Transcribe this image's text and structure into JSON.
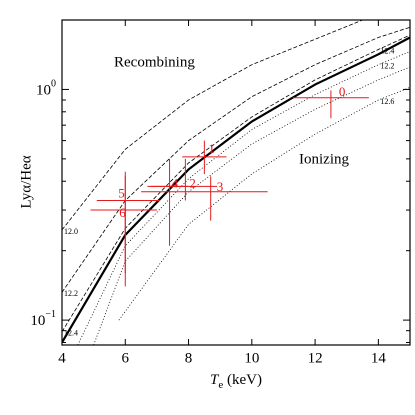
{
  "chart_data": {
    "type": "scatter",
    "xlabel": {
      "main": "T",
      "sub": "e",
      "rest": " (keV)"
    },
    "ylabel": "Lyα/Heα",
    "xlim": [
      4,
      15
    ],
    "ylim": [
      0.078,
      2.0
    ],
    "log_y": true,
    "xticks": [
      4,
      6,
      8,
      10,
      12,
      14
    ],
    "yticks": [
      {
        "value": 0.1,
        "label": "10",
        "exponent": "−1"
      },
      {
        "value": 1,
        "label": "10",
        "exponent": "0"
      }
    ],
    "yminor": [
      0.08,
      0.09,
      0.2,
      0.3,
      0.4,
      0.5,
      0.6,
      0.7,
      0.8,
      0.9,
      2
    ],
    "annotations": [
      "Recombining",
      "Ionizing"
    ],
    "right_labels": [
      "12.4",
      "12.2",
      "12.6"
    ],
    "curves": [
      {
        "name": "12.0",
        "style": "dashed",
        "x": [
          4,
          6,
          8,
          10,
          12,
          13.5
        ],
        "values": [
          0.246,
          0.55,
          0.9,
          1.28,
          1.65,
          2.0
        ]
      },
      {
        "name": "12.2",
        "style": "dashed",
        "x": [
          4,
          6,
          8,
          10,
          12,
          14,
          15
        ],
        "values": [
          0.132,
          0.33,
          0.6,
          0.93,
          1.28,
          1.68,
          1.86
        ]
      },
      {
        "name": "12.4",
        "style": "dashed",
        "x": [
          4,
          6,
          8,
          10,
          12,
          14,
          15
        ],
        "values": [
          0.089,
          0.25,
          0.48,
          0.76,
          1.1,
          1.49,
          1.72
        ]
      },
      {
        "style": "solid",
        "x": [
          4,
          6,
          8,
          10,
          12,
          14,
          15
        ],
        "values": [
          0.08,
          0.234,
          0.45,
          0.726,
          1.05,
          1.42,
          1.68
        ]
      },
      {
        "style": "dotted",
        "x": [
          4.5,
          6,
          8,
          10,
          12,
          14,
          15
        ],
        "values": [
          0.078,
          0.21,
          0.41,
          0.67,
          0.95,
          1.28,
          1.46
        ]
      },
      {
        "style": "dotted",
        "x": [
          5,
          6,
          8,
          10,
          12,
          14,
          15
        ],
        "values": [
          0.078,
          0.18,
          0.36,
          0.58,
          0.82,
          1.1,
          1.25
        ]
      },
      {
        "style": "dotted",
        "x": [
          5.8,
          8,
          10,
          12,
          14,
          15
        ],
        "values": [
          0.1,
          0.26,
          0.43,
          0.64,
          0.9,
          1.02
        ]
      }
    ],
    "points": {
      "color": "#e41a1c",
      "labels": [
        "0",
        "1",
        "2",
        "3",
        "4",
        "5",
        "6"
      ],
      "x": [
        12.5,
        8.5,
        7.9,
        8.7,
        7.4,
        6.0,
        6.0
      ],
      "values": [
        0.92,
        0.51,
        0.38,
        0.36,
        0.38,
        0.33,
        0.3
      ],
      "xlow": [
        11.3,
        7.8,
        6.8,
        6.5,
        6.7,
        5.1,
        4.9
      ],
      "xhigh": [
        13.7,
        9.2,
        8.9,
        10.5,
        8.0,
        7.1,
        7.0
      ],
      "ylow": [
        0.75,
        0.43,
        0.33,
        0.27,
        0.21,
        0.16,
        0.14
      ],
      "yhigh": [
        0.99,
        0.6,
        0.5,
        0.42,
        0.5,
        0.44,
        0.42
      ]
    }
  }
}
